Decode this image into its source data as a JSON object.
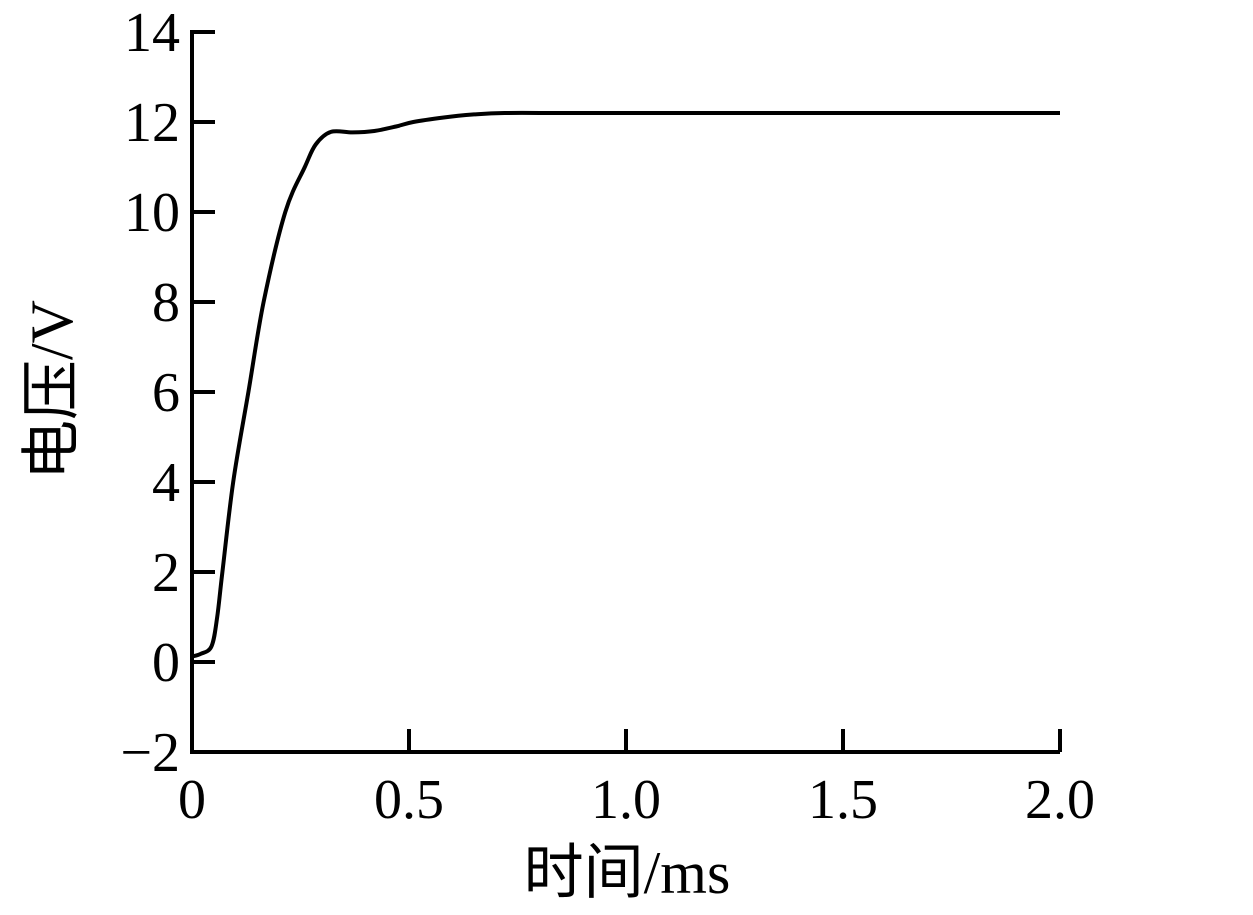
{
  "figure": {
    "background": "#ffffff",
    "description_role": "voltage versus time oscillogram"
  },
  "chart_data": {
    "type": "line",
    "title": "",
    "xlabel": "时间/ms",
    "ylabel": "电压/V",
    "xlim": [
      0,
      2.0
    ],
    "ylim": [
      -2,
      14
    ],
    "grid": false,
    "legend": null,
    "xticks": {
      "values": [
        0,
        0.5,
        1.0,
        1.5,
        2.0
      ],
      "labels": [
        "0",
        "0.5",
        "1.0",
        "1.5",
        "2.0"
      ]
    },
    "yticks": {
      "values": [
        -2,
        0,
        2,
        4,
        6,
        8,
        10,
        12,
        14
      ],
      "labels": [
        "−2",
        "0",
        "2",
        "4",
        "6",
        "8",
        "10",
        "12",
        "14"
      ]
    },
    "colors": {
      "line": "#000000",
      "axis": "#000000",
      "text": "#000000",
      "background": "#ffffff"
    },
    "series": [
      {
        "name": "voltage",
        "x": [
          0,
          0.02,
          0.045,
          0.058,
          0.07,
          0.095,
          0.13,
          0.165,
          0.215,
          0.26,
          0.285,
          0.32,
          0.37,
          0.42,
          0.47,
          0.51,
          0.58,
          0.65,
          0.72,
          0.85,
          1.0,
          1.25,
          1.5,
          1.75,
          2.0
        ],
        "y": [
          0.12,
          0.18,
          0.35,
          1.0,
          2.0,
          4.0,
          6.0,
          8.0,
          10.0,
          11.0,
          11.5,
          11.78,
          11.77,
          11.8,
          11.9,
          12.0,
          12.1,
          12.17,
          12.2,
          12.2,
          12.2,
          12.2,
          12.2,
          12.2,
          12.2
        ]
      }
    ]
  }
}
